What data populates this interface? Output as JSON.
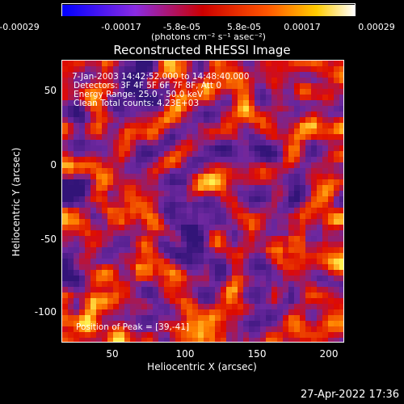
{
  "colorbar": {
    "ticks": [
      "-0.00029",
      "-0.00017",
      "-5.8e-05",
      "5.8e-05",
      "0.00017",
      "0.00029"
    ],
    "units": "(photons cm⁻² s⁻¹ asec⁻²)",
    "colors": [
      "#0000ff",
      "#9900ff",
      "#ff0000",
      "#ff9900",
      "#ffffff"
    ]
  },
  "title": "Reconstructed RHESSI Image",
  "annotations": {
    "time_range": "7-Jan-2003 14:42:52.000 to 14:48:40.000",
    "detectors": "Detectors: 3F 4F 5F 6F 7F 8F, Att 0",
    "energy": "Energy Range: 25.0 - 50.0 keV",
    "clean": "Clean    Total counts: 4.23E+03",
    "peak": "Position of Peak = [39,-41]"
  },
  "axes": {
    "xlabel": "Heliocentric X (arcsec)",
    "ylabel": "Heliocentric Y (arcsec)",
    "xticks": [
      "50",
      "100",
      "150",
      "200"
    ],
    "yticks": [
      "50",
      "0",
      "-50",
      "-100"
    ]
  },
  "timestamp": "27-Apr-2022 17:36"
}
